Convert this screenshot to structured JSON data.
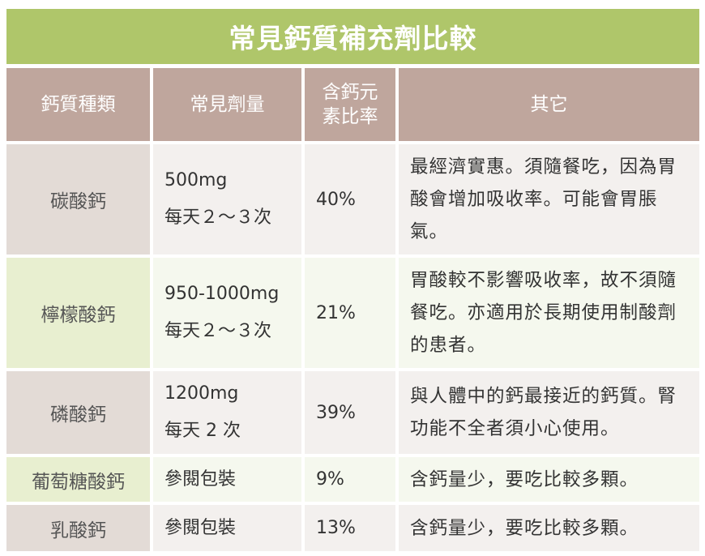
{
  "title": "常見鈣質補充劑比較",
  "headers": {
    "type": "鈣質種類",
    "dose": "常見劑量",
    "ratio_line1": "含鈣元",
    "ratio_line2": "素比率",
    "other": "其它"
  },
  "rows": [
    {
      "name": "碳酸鈣",
      "dose_amount": "500mg",
      "dose_freq": "每天２～３次",
      "ratio": "40%",
      "note": "最經濟實惠。須隨餐吃，因為胃酸會增加吸收率。可能會胃脹氣。"
    },
    {
      "name": "檸檬酸鈣",
      "dose_amount": "950-1000mg",
      "dose_freq": "每天２～３次",
      "ratio": "21%",
      "note": "胃酸較不影響吸收率，故不須隨餐吃。亦適用於長期使用制酸劑的患者。"
    },
    {
      "name": "磷酸鈣",
      "dose_amount": "1200mg",
      "dose_freq": "每天 2 次",
      "ratio": "39%",
      "note": "與人體中的鈣最接近的鈣質。腎功能不全者須小心使用。"
    },
    {
      "name": "葡萄糖酸鈣",
      "dose_amount": "參閱包裝",
      "dose_freq": "",
      "ratio": "9%",
      "note": "含鈣量少，要吃比較多顆。"
    },
    {
      "name": "乳酸鈣",
      "dose_amount": "參閱包裝",
      "dose_freq": "",
      "ratio": "13%",
      "note": "含鈣量少，要吃比較多顆。"
    }
  ],
  "colors": {
    "title_bg": "#afc66a",
    "header_bg": "#bfa69d",
    "pink_name_bg": "#e3dbd6",
    "pink_data_bg": "#f3f0ee",
    "green_name_bg": "#e8efd0",
    "green_data_bg": "#f5f8ee"
  }
}
